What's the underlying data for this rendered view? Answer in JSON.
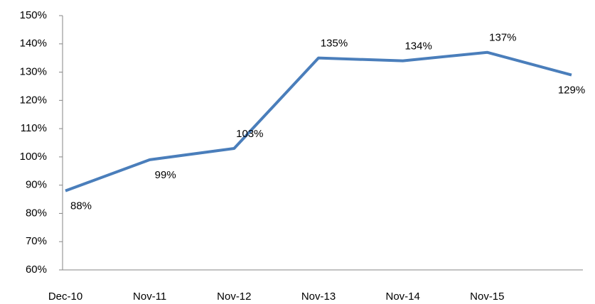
{
  "chart_data": {
    "type": "line",
    "categories": [
      "Dec-10",
      "Nov-11",
      "Nov-12",
      "Nov-13",
      "Nov-14",
      "Nov-15",
      null
    ],
    "series": [
      {
        "color": "#4a7ebb",
        "values": [
          88,
          99,
          103,
          135,
          134,
          137,
          129
        ],
        "value_labels": [
          "88%",
          "99%",
          "103%",
          "135%",
          "134%",
          "137%",
          "129%"
        ]
      }
    ],
    "ylim": [
      60,
      150
    ],
    "yticks": [
      {
        "value": 60,
        "label": "60%"
      },
      {
        "value": 70,
        "label": "70%"
      },
      {
        "value": 80,
        "label": "80%"
      },
      {
        "value": 90,
        "label": "90%"
      },
      {
        "value": 100,
        "label": "100%"
      },
      {
        "value": 110,
        "label": "110%"
      },
      {
        "value": 120,
        "label": "120%"
      },
      {
        "value": 130,
        "label": "130%"
      },
      {
        "value": 140,
        "label": "140%"
      },
      {
        "value": 150,
        "label": "150%"
      }
    ],
    "grid": false
  }
}
